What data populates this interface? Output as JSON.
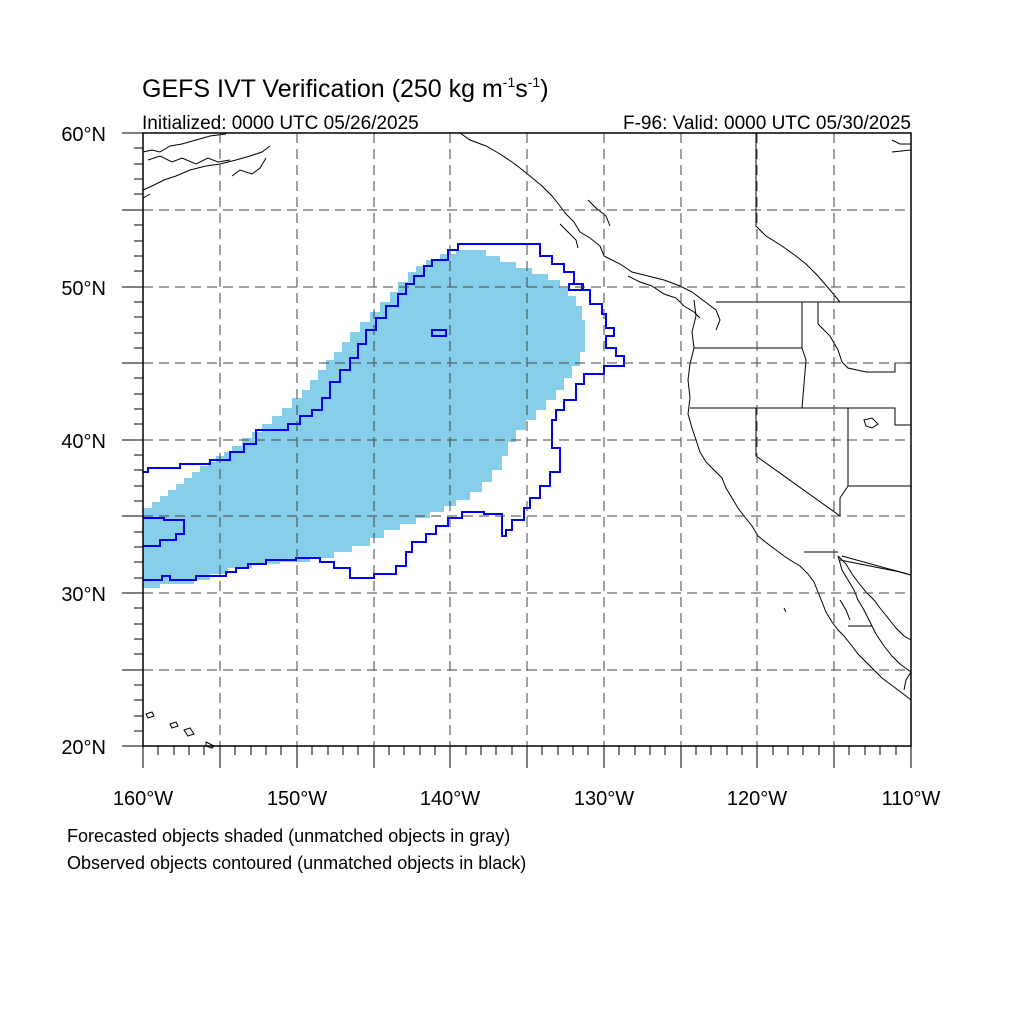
{
  "title": {
    "main": "GEFS IVT Verification (250 kg m",
    "sup1": "-1",
    "mid": "s",
    "sup2": "-1",
    "end": ")"
  },
  "initialized": "Initialized: 0000 UTC 05/26/2025",
  "valid": "F-96: Valid: 0000 UTC 05/30/2025",
  "lon_labels": [
    "160°W",
    "150°W",
    "140°W",
    "130°W",
    "120°W",
    "110°W"
  ],
  "lat_labels": [
    "60°N",
    "50°N",
    "40°N",
    "30°N",
    "20°N"
  ],
  "notes": [
    "Forecasted objects shaded (unmatched objects in gray)",
    "Observed objects contoured (unmatched objects in black)"
  ],
  "map": {
    "lon_range": [
      -160,
      -110
    ],
    "lat_range": [
      20,
      60
    ],
    "grid_spacing_deg": 5,
    "grid": "dashed",
    "colors": {
      "forecast_fill": "#87ceeb",
      "observed_contour": "#0000ee",
      "coastline": "#000000"
    }
  }
}
